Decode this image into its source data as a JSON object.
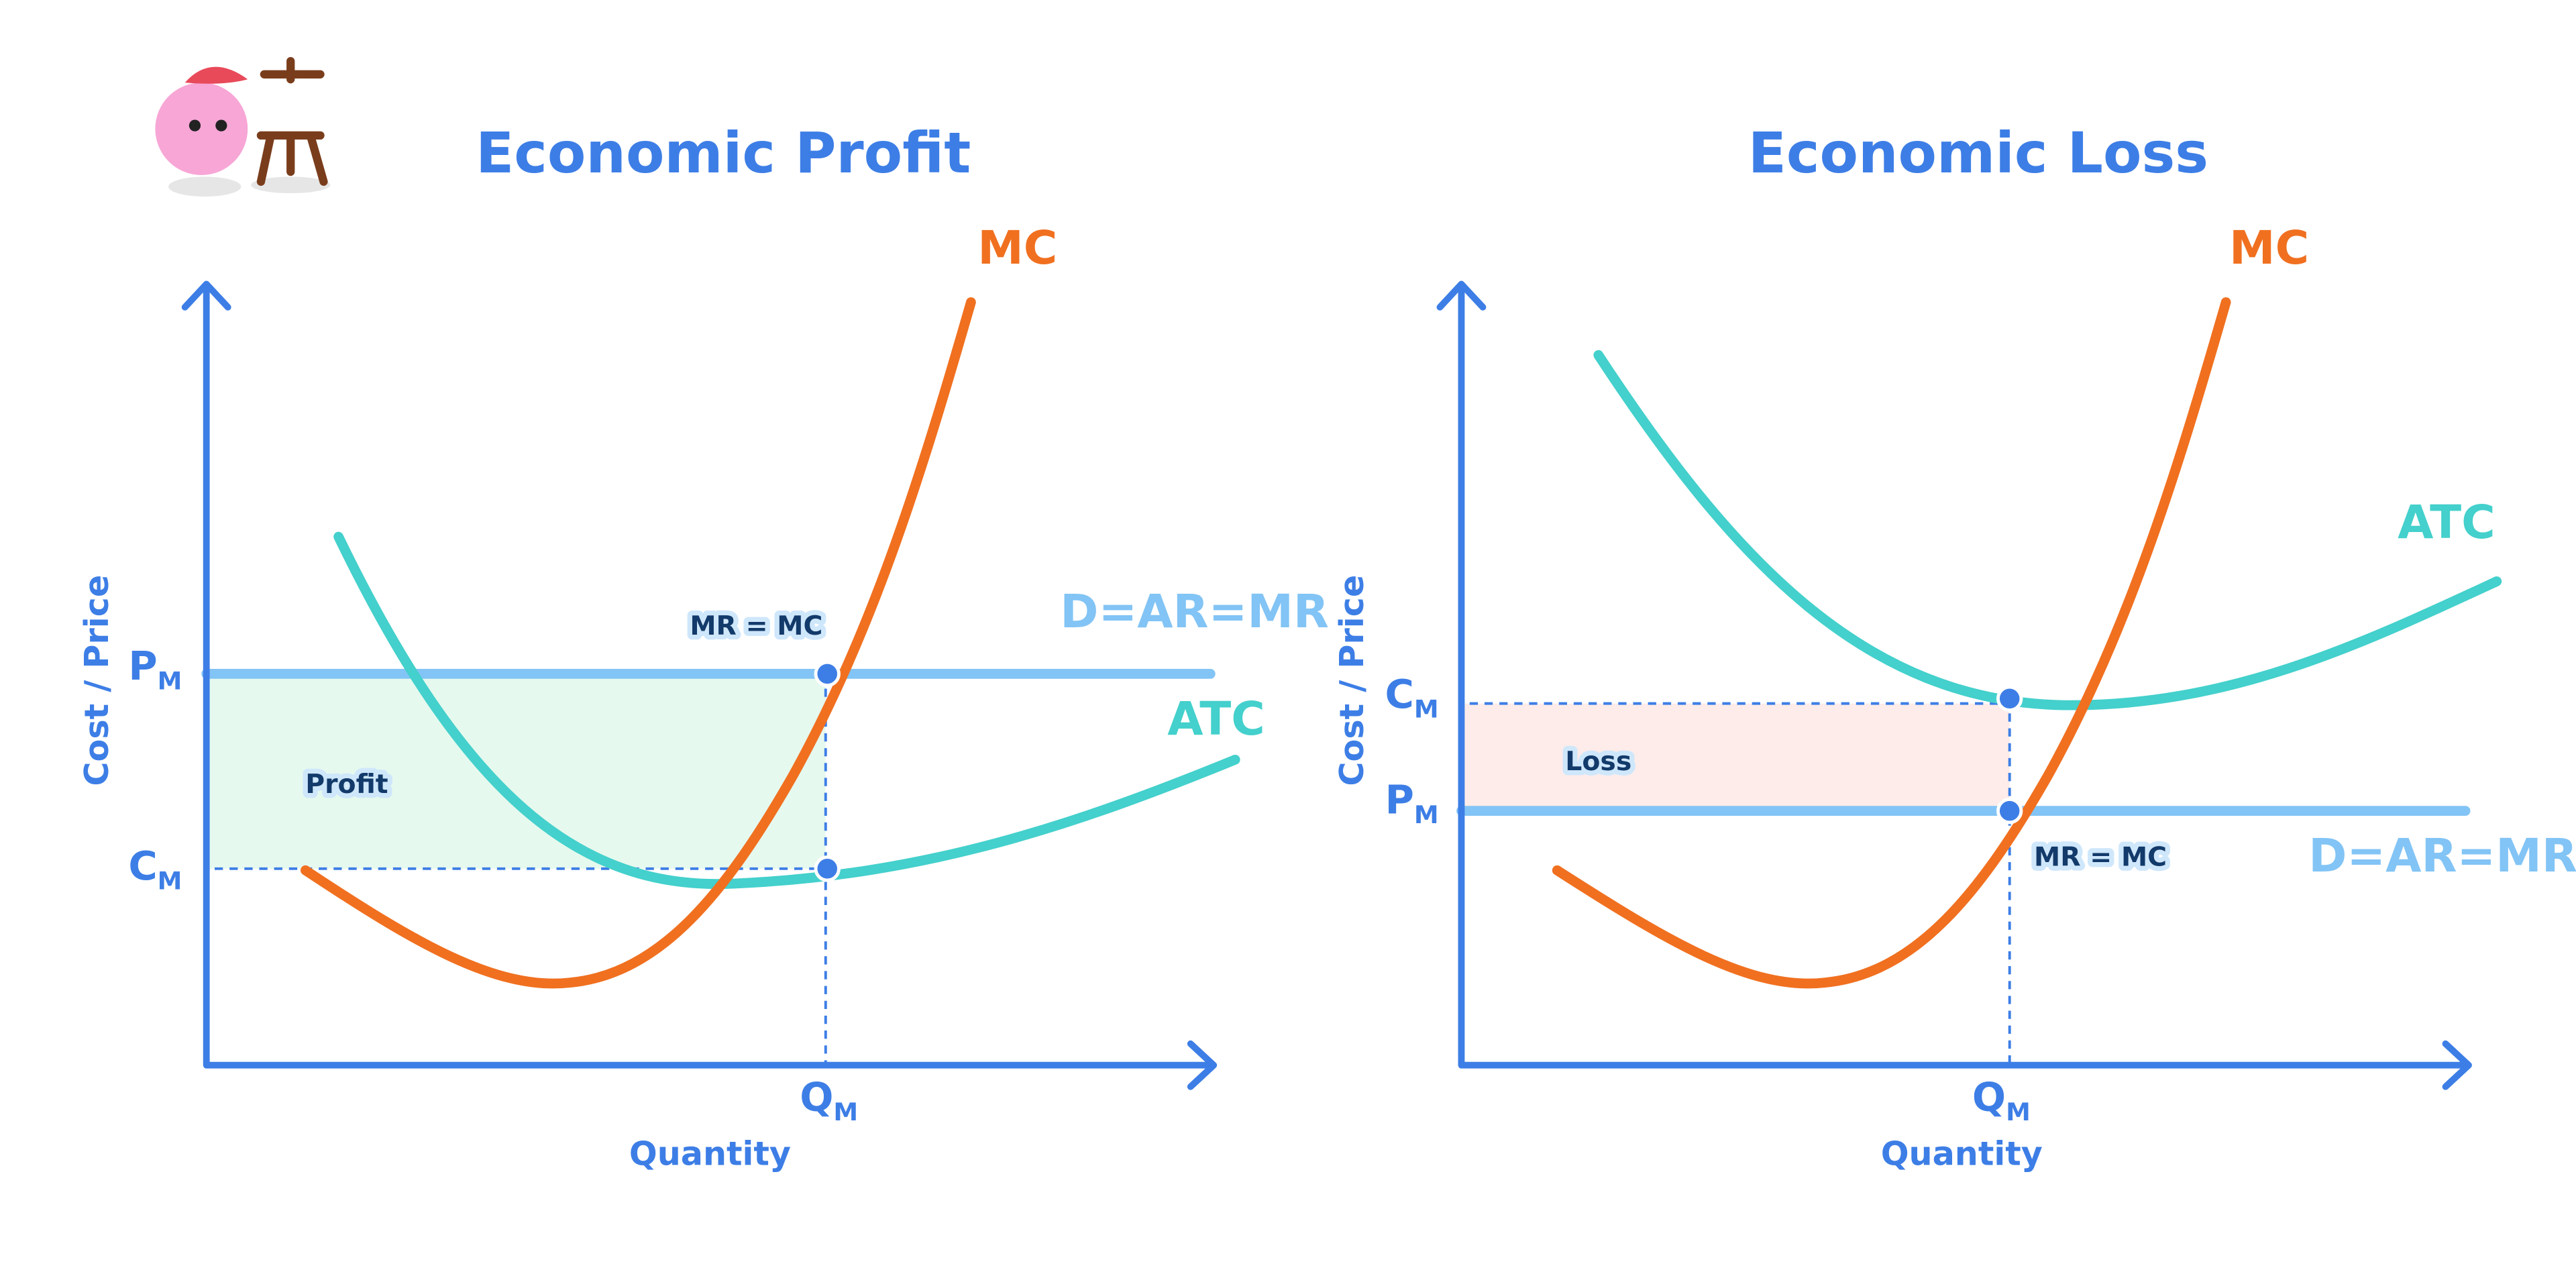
{
  "panels": [
    {
      "title": "Economic Profit",
      "y_axis_label": "Cost / Price",
      "x_axis_label": "Quantity",
      "mc_label": "MC",
      "atc_label": "ATC",
      "demand_label": "D=AR=MR",
      "intersection_label": "MR = MC",
      "area_label": "Profit",
      "price_label": {
        "letter": "P",
        "sub": "M"
      },
      "cost_label": {
        "letter": "C",
        "sub": "M"
      },
      "quantity_label": {
        "letter": "Q",
        "sub": "M"
      }
    },
    {
      "title": "Economic Loss",
      "y_axis_label": "Cost / Price",
      "x_axis_label": "Quantity",
      "mc_label": "MC",
      "atc_label": "ATC",
      "demand_label": "D=AR=MR",
      "intersection_label": "MR = MC",
      "area_label": "Loss",
      "price_label": {
        "letter": "P",
        "sub": "M"
      },
      "cost_label": {
        "letter": "C",
        "sub": "M"
      },
      "quantity_label": {
        "letter": "Q",
        "sub": "M"
      }
    }
  ]
}
